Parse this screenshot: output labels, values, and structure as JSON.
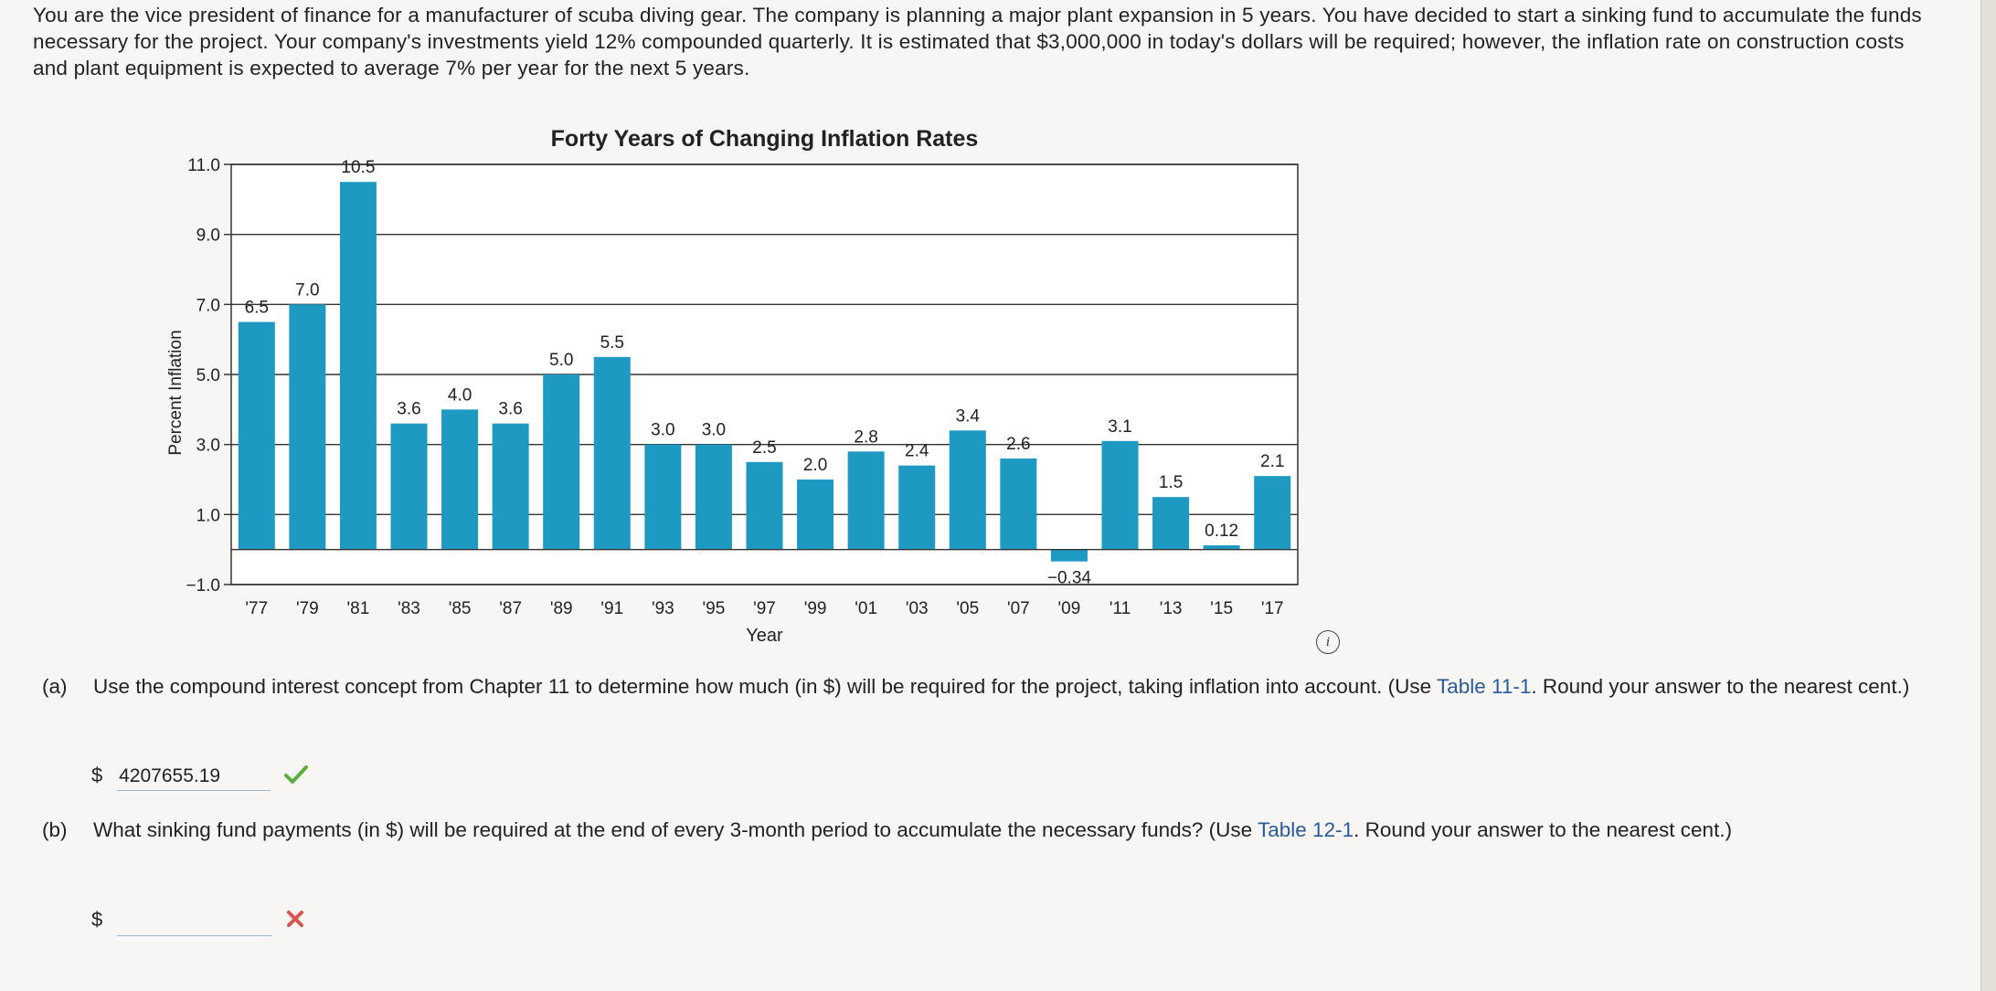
{
  "problem": {
    "intro": "You are the vice president of finance for a manufacturer of scuba diving gear. The company is planning a major plant expansion in 5 years. You have decided to start a sinking fund to accumulate the funds necessary for the project. Your company's investments yield 12% compounded quarterly. It is estimated that $3,000,000 in today's dollars will be required; however, the inflation rate on construction costs and plant equipment is expected to average 7% per year for the next 5 years."
  },
  "chart_data": {
    "type": "bar",
    "title": "Forty Years of Changing Inflation Rates",
    "xlabel": "Year",
    "ylabel": "Percent Inflation",
    "ylim": [
      -1.0,
      11.0
    ],
    "yticks": [
      "11.0",
      "9.0",
      "7.0",
      "5.0",
      "3.0",
      "1.0",
      "−1.0"
    ],
    "categories": [
      "'77",
      "'79",
      "'81",
      "'83",
      "'85",
      "'87",
      "'89",
      "'91",
      "'93",
      "'95",
      "'97",
      "'99",
      "'01",
      "'03",
      "'05",
      "'07",
      "'09",
      "'11",
      "'13",
      "'15",
      "'17"
    ],
    "values": [
      6.5,
      7.0,
      10.5,
      3.6,
      4.0,
      3.6,
      5.0,
      5.5,
      3.0,
      3.0,
      2.5,
      2.0,
      2.8,
      2.4,
      3.4,
      2.6,
      -0.34,
      3.1,
      1.5,
      0.12,
      2.1
    ],
    "labels": [
      "6.5",
      "7.0",
      "10.5",
      "3.6",
      "4.0",
      "3.6",
      "5.0",
      "5.5",
      "3.0",
      "3.0",
      "2.5",
      "2.0",
      "2.8",
      "2.4",
      "3.4",
      "2.6",
      "−0.34",
      "3.1",
      "1.5",
      "0.12",
      "2.1"
    ],
    "bar_color": "#1e9ac2",
    "grid": true
  },
  "parts": {
    "a": {
      "letter": "(a)",
      "text_before": "Use the compound interest concept from Chapter 11 to determine how much (in $) will be required for the project, taking inflation into account. (Use ",
      "link": "Table 11-1",
      "text_after": ". Round your answer to the nearest cent.)",
      "currency": "$",
      "answer": "4207655.19",
      "status": "correct"
    },
    "b": {
      "letter": "(b)",
      "text_before": "What sinking fund payments (in $) will be required at the end of every 3-month period to accumulate the necessary funds? (Use ",
      "link": "Table 12-1",
      "text_after": ". Round your answer to the nearest cent.)",
      "currency": "$",
      "answer": "",
      "status": "incorrect"
    }
  },
  "icons": {
    "info": "i",
    "check_color": "#5aae3c",
    "cross_color": "#d9534f"
  }
}
